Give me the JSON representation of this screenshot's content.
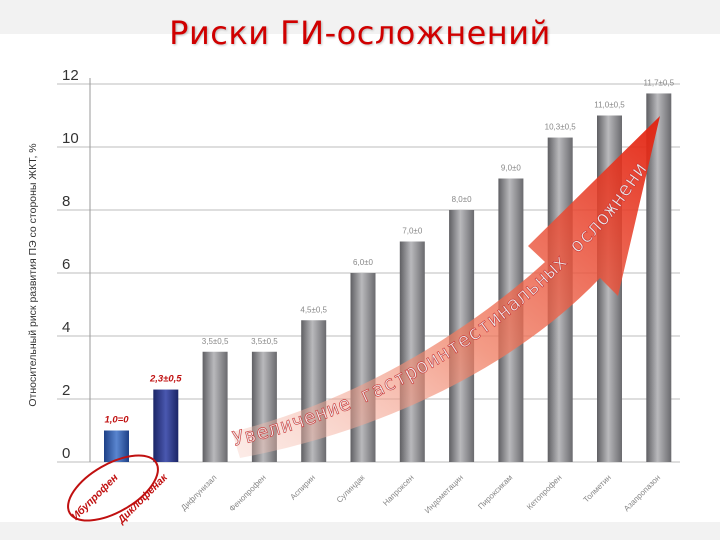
{
  "slide": {
    "title": "Риски ГИ-осложнений"
  },
  "chart_data": {
    "type": "bar",
    "ylabel": "Относительный риск развития ПЭ со стороны ЖКТ, %",
    "ylim": [
      0,
      12
    ],
    "yticks": [
      0,
      2,
      4,
      6,
      8,
      10,
      12
    ],
    "grid": true,
    "categories": [
      "Ибупрофен",
      "Диклофенак",
      "Дифлунизал",
      "Фенопрофен",
      "Аспирин",
      "Сулиндак",
      "Напроксен",
      "Индометацин",
      "Пироксикам",
      "Кетопрофен",
      "Толметин",
      "Азапропазон"
    ],
    "values": [
      1.0,
      2.3,
      3.5,
      3.5,
      4.5,
      6.0,
      7.0,
      8.0,
      9.0,
      10.3,
      11.0,
      11.7
    ],
    "value_labels": [
      "1,0=0",
      "2,3±0,5",
      "3,5±0,5",
      "3,5±0,5",
      "4,5±0,5",
      "6,0±0",
      "7,0±0",
      "8,0±0",
      "9,0±0",
      "10,3±0,5",
      "11,0±0,5",
      "11,7±0,5"
    ],
    "highlighted": [
      0,
      1
    ],
    "annotation": "Увеличение гастроинтестинальных осложнений",
    "colors": {
      "bar": "#8a8a8e",
      "ibuprofen": "#2c5aa8",
      "diclofenac": "#2a3a86",
      "highlight_text": "#c01010",
      "arrow": "#e8341c"
    }
  }
}
